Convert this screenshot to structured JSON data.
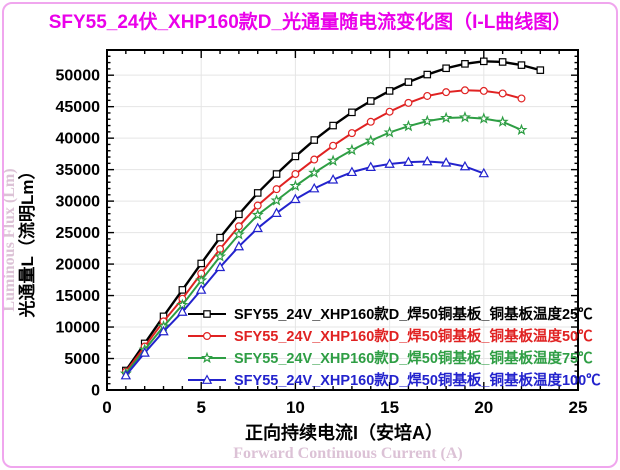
{
  "title": "SFY55_24伏_XHP160款D_光通量随电流变化图（I-L曲线图）",
  "colors": {
    "title": "#ea00ea",
    "frame_border": "#f0a6ee",
    "grid": "#e5e5e5",
    "axis": "#000000",
    "en_axis_label": "#dcc2d6"
  },
  "chart_data": {
    "type": "line",
    "title": "SFY55_24伏_XHP160款D_光通量随电流变化图（I-L曲线图）",
    "xlabel": "正向持续电流I（安培A）",
    "xlabel_en": "Forward Continuous Current (A)",
    "ylabel": "光通量L（流明Lm）",
    "ylabel_en": "Luminous Flux (Lm)",
    "xlim": [
      0,
      25
    ],
    "ylim": [
      0,
      54000
    ],
    "x_major_ticks": [
      0,
      5,
      10,
      15,
      20,
      25
    ],
    "y_major_ticks": [
      0,
      5000,
      10000,
      15000,
      20000,
      25000,
      30000,
      35000,
      40000,
      45000,
      50000
    ],
    "x_minor_step": 1,
    "y_minor_step": 1000,
    "grid": true,
    "legend_position": "inside-bottom-center",
    "series": [
      {
        "name": "SFY55_24V_XHP160款D_焊50铜基板_铜基板温度25℃",
        "color": "#000000",
        "marker": "square",
        "x": [
          1,
          2,
          3,
          4,
          5,
          6,
          7,
          8,
          9,
          10,
          11,
          12,
          13,
          14,
          15,
          16,
          17,
          18,
          19,
          20,
          21,
          22,
          23
        ],
        "values": [
          3100,
          7400,
          11700,
          15900,
          20100,
          24200,
          27900,
          31300,
          34300,
          37100,
          39700,
          42000,
          44100,
          45900,
          47500,
          48900,
          50100,
          51100,
          51800,
          52200,
          52100,
          51600,
          50800
        ]
      },
      {
        "name": "SFY55_24V_XHP160款D_焊50铜基板_铜基板温度50℃",
        "color": "#e02222",
        "marker": "circle",
        "x": [
          1,
          2,
          3,
          4,
          5,
          6,
          7,
          8,
          9,
          10,
          11,
          12,
          13,
          14,
          15,
          16,
          17,
          18,
          19,
          20,
          21,
          22
        ],
        "values": [
          2900,
          6900,
          10900,
          14500,
          18500,
          22400,
          26000,
          29300,
          31900,
          34300,
          36600,
          38800,
          40800,
          42600,
          44200,
          45600,
          46700,
          47300,
          47600,
          47500,
          47100,
          46300
        ]
      },
      {
        "name": "SFY55_24V_XHP160款D_焊50铜基板_铜基板温度75℃",
        "color": "#2e9e44",
        "marker": "star",
        "x": [
          1,
          2,
          3,
          4,
          5,
          6,
          7,
          8,
          9,
          10,
          11,
          12,
          13,
          14,
          15,
          16,
          17,
          18,
          19,
          20,
          21,
          22
        ],
        "values": [
          2600,
          6400,
          10100,
          13500,
          17400,
          21200,
          24700,
          27800,
          30100,
          32400,
          34500,
          36400,
          38100,
          39600,
          40900,
          41900,
          42700,
          43200,
          43300,
          43100,
          42600,
          41300
        ]
      },
      {
        "name": "SFY55_24V_XHP160款D_焊50铜基板_铜基板温度100℃",
        "color": "#2323cd",
        "marker": "triangle",
        "x": [
          1,
          2,
          3,
          4,
          5,
          6,
          7,
          8,
          9,
          10,
          11,
          12,
          13,
          14,
          15,
          16,
          17,
          18,
          19,
          20
        ],
        "values": [
          2300,
          5900,
          9300,
          12400,
          15900,
          19500,
          22800,
          25700,
          28100,
          30300,
          32000,
          33400,
          34600,
          35400,
          35900,
          36200,
          36300,
          36100,
          35500,
          34400
        ]
      }
    ]
  }
}
